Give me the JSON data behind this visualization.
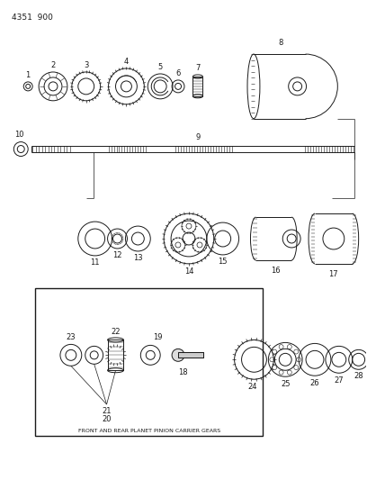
{
  "title": "4351  900",
  "background": "#ffffff",
  "line_color": "#1a1a1a",
  "label_fontsize": 6.0,
  "title_fontsize": 6.5,
  "caption": "FRONT AND REAR PLANET PINION CARRIER GEARS"
}
